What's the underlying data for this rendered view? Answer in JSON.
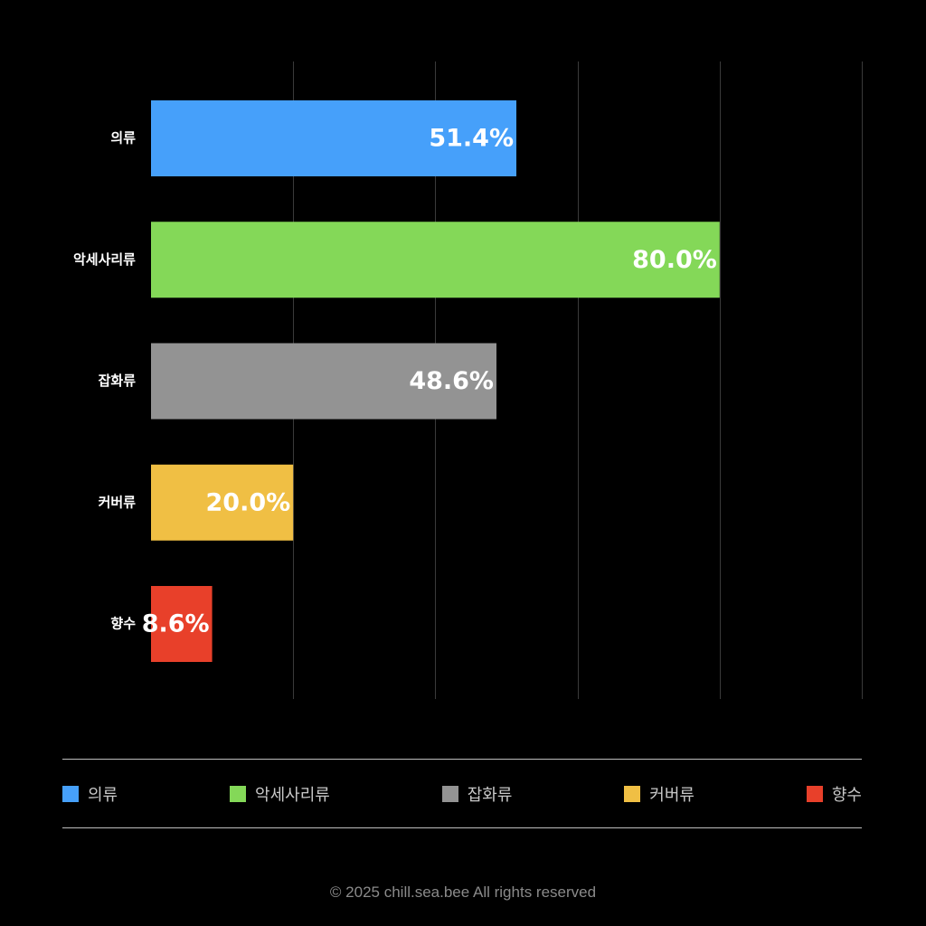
{
  "chart_data": {
    "type": "bar",
    "orientation": "horizontal",
    "categories": [
      "의류",
      "악세사리류",
      "잡화류",
      "커버류",
      "향수"
    ],
    "values": [
      51.4,
      80.0,
      48.6,
      20.0,
      8.6
    ],
    "data_labels": [
      "51.4%",
      "80.0%",
      "48.6%",
      "20.0%",
      "8.6%"
    ],
    "colors": [
      "#46a0fa",
      "#84d858",
      "#939393",
      "#f0bf44",
      "#e8402a"
    ],
    "xlim": [
      0,
      100
    ],
    "unit": "%",
    "grid": true,
    "legend_placement": "bottom",
    "title": "",
    "xlabel": "",
    "ylabel": ""
  },
  "legend": {
    "items": [
      {
        "label": "의류",
        "color": "#46a0fa"
      },
      {
        "label": "악세사리류",
        "color": "#84d858"
      },
      {
        "label": "잡화류",
        "color": "#939393"
      },
      {
        "label": "커버류",
        "color": "#f0bf44"
      },
      {
        "label": "향수",
        "color": "#e8402a"
      }
    ]
  },
  "footer": {
    "text": "© 2025 chill.sea.bee All rights reserved"
  }
}
